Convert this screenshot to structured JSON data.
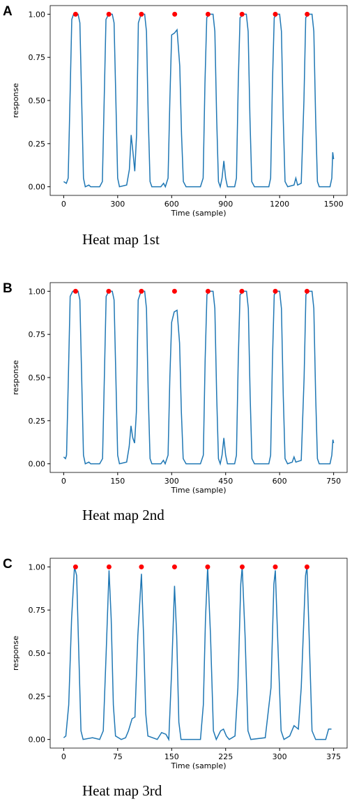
{
  "chart_data": [
    {
      "type": "line",
      "panel_label": "A",
      "caption": "Heat map 1st",
      "ylabel": "response",
      "xlabel": "Time (sample)",
      "xlim": [
        -75,
        1575
      ],
      "ylim": [
        -0.05,
        1.05
      ],
      "xticks": [
        0,
        300,
        600,
        900,
        1200,
        1500
      ],
      "yticks": [
        {
          "value": 0,
          "label": "0.00"
        },
        {
          "value": 0.25,
          "label": "0.25"
        },
        {
          "value": 0.5,
          "label": "0.50"
        },
        {
          "value": 0.75,
          "label": "0.75"
        },
        {
          "value": 1,
          "label": "1.00"
        }
      ],
      "x": [
        0,
        15,
        25,
        35,
        45,
        55,
        80,
        90,
        100,
        110,
        120,
        140,
        150,
        200,
        215,
        225,
        235,
        250,
        270,
        280,
        290,
        300,
        310,
        350,
        365,
        375,
        385,
        395,
        405,
        415,
        430,
        450,
        460,
        470,
        480,
        490,
        540,
        555,
        565,
        580,
        590,
        600,
        615,
        630,
        645,
        655,
        665,
        680,
        760,
        775,
        785,
        795,
        810,
        830,
        840,
        850,
        860,
        870,
        880,
        890,
        900,
        910,
        950,
        960,
        970,
        980,
        1000,
        1015,
        1025,
        1035,
        1045,
        1060,
        1140,
        1150,
        1160,
        1170,
        1185,
        1200,
        1210,
        1220,
        1230,
        1245,
        1280,
        1290,
        1300,
        1320,
        1335,
        1345,
        1360,
        1380,
        1390,
        1400,
        1410,
        1420,
        1480,
        1490,
        1495,
        1500
      ],
      "series": [
        {
          "color": "#1f77b4",
          "values": [
            0.03,
            0.02,
            0.05,
            0.5,
            0.97,
            1.0,
            1.0,
            0.95,
            0.5,
            0.05,
            0.0,
            0.01,
            0.0,
            0.0,
            0.03,
            0.5,
            0.97,
            1.0,
            1.0,
            0.95,
            0.5,
            0.05,
            0.0,
            0.01,
            0.1,
            0.3,
            0.2,
            0.09,
            0.3,
            0.95,
            1.0,
            1.0,
            0.9,
            0.4,
            0.03,
            0.0,
            0.0,
            0.02,
            0.0,
            0.05,
            0.5,
            0.88,
            0.89,
            0.91,
            0.7,
            0.3,
            0.03,
            0.0,
            0.0,
            0.05,
            0.6,
            0.98,
            1.0,
            1.0,
            0.9,
            0.4,
            0.03,
            0.0,
            0.05,
            0.15,
            0.05,
            0.0,
            0.0,
            0.05,
            0.6,
            0.98,
            1.0,
            1.0,
            0.9,
            0.4,
            0.03,
            0.0,
            0.0,
            0.05,
            0.6,
            0.98,
            1.0,
            1.0,
            0.9,
            0.4,
            0.03,
            0.0,
            0.01,
            0.05,
            0.01,
            0.02,
            0.5,
            0.98,
            1.0,
            1.0,
            0.9,
            0.4,
            0.03,
            0.0,
            0.0,
            0.05,
            0.2,
            0.16
          ]
        }
      ],
      "peaks": {
        "color": "#ff0000",
        "x": [
          66,
          251,
          432,
          617,
          802,
          991,
          1176,
          1353
        ],
        "values": [
          1,
          1,
          1,
          1,
          1,
          1,
          1,
          1
        ]
      }
    },
    {
      "type": "line",
      "panel_label": "B",
      "caption": "Heat map 2nd",
      "ylabel": "response",
      "xlabel": "Time (sample)",
      "xlim": [
        -37.5,
        787.5
      ],
      "ylim": [
        -0.05,
        1.05
      ],
      "xticks": [
        0,
        150,
        300,
        450,
        600,
        750
      ],
      "yticks": [
        {
          "value": 0,
          "label": "0.00"
        },
        {
          "value": 0.25,
          "label": "0.25"
        },
        {
          "value": 0.5,
          "label": "0.50"
        },
        {
          "value": 0.75,
          "label": "0.75"
        },
        {
          "value": 1,
          "label": "1.00"
        }
      ],
      "x": [
        0,
        5,
        8,
        13,
        18,
        25,
        40,
        45,
        50,
        55,
        60,
        70,
        75,
        100,
        108,
        113,
        118,
        125,
        135,
        140,
        145,
        150,
        155,
        175,
        182,
        187,
        192,
        197,
        202,
        207,
        215,
        225,
        230,
        235,
        240,
        245,
        270,
        277,
        282,
        290,
        295,
        300,
        307,
        315,
        322,
        327,
        332,
        340,
        380,
        388,
        393,
        398,
        405,
        415,
        420,
        425,
        430,
        435,
        440,
        445,
        450,
        455,
        475,
        480,
        485,
        490,
        500,
        508,
        513,
        518,
        523,
        530,
        570,
        575,
        580,
        585,
        593,
        600,
        605,
        610,
        615,
        622,
        635,
        640,
        645,
        660,
        668,
        673,
        680,
        690,
        695,
        700,
        705,
        710,
        740,
        745,
        748,
        750
      ],
      "series": [
        {
          "color": "#1f77b4",
          "values": [
            0.04,
            0.03,
            0.05,
            0.5,
            0.97,
            1.0,
            1.0,
            0.95,
            0.5,
            0.05,
            0.0,
            0.01,
            0.0,
            0.0,
            0.03,
            0.5,
            0.97,
            1.0,
            1.0,
            0.95,
            0.5,
            0.05,
            0.0,
            0.01,
            0.1,
            0.22,
            0.15,
            0.12,
            0.3,
            0.95,
            1.0,
            1.0,
            0.9,
            0.4,
            0.03,
            0.0,
            0.0,
            0.02,
            0.0,
            0.05,
            0.5,
            0.82,
            0.88,
            0.89,
            0.7,
            0.3,
            0.03,
            0.0,
            0.0,
            0.05,
            0.6,
            0.98,
            1.0,
            1.0,
            0.9,
            0.4,
            0.03,
            0.0,
            0.05,
            0.15,
            0.05,
            0.0,
            0.0,
            0.05,
            0.6,
            0.98,
            1.0,
            1.0,
            0.9,
            0.4,
            0.03,
            0.0,
            0.0,
            0.05,
            0.6,
            0.98,
            1.0,
            1.0,
            0.9,
            0.4,
            0.03,
            0.0,
            0.01,
            0.04,
            0.01,
            0.02,
            0.5,
            0.98,
            1.0,
            1.0,
            0.9,
            0.4,
            0.03,
            0.0,
            0.0,
            0.05,
            0.14,
            0.12
          ]
        }
      ],
      "peaks": {
        "color": "#ff0000",
        "x": [
          33,
          125,
          216,
          308,
          401,
          495,
          588,
          676
        ],
        "values": [
          1,
          1,
          1,
          1,
          1,
          1,
          1,
          1
        ]
      }
    },
    {
      "type": "line",
      "panel_label": "C",
      "caption": "Heat map 3rd",
      "ylabel": "response",
      "xlabel": "Time (sample)",
      "xlim": [
        -18.75,
        393.75
      ],
      "ylim": [
        -0.05,
        1.05
      ],
      "xticks": [
        0,
        75,
        150,
        225,
        300,
        375
      ],
      "yticks": [
        {
          "value": 0,
          "label": "0.00"
        },
        {
          "value": 0.25,
          "label": "0.25"
        },
        {
          "value": 0.5,
          "label": "0.50"
        },
        {
          "value": 0.75,
          "label": "0.75"
        },
        {
          "value": 1,
          "label": "1.00"
        }
      ],
      "x": [
        0,
        3,
        7,
        11,
        15,
        18,
        21,
        24,
        27,
        40,
        50,
        55,
        59,
        63,
        66,
        69,
        72,
        80,
        86,
        90,
        95,
        99,
        103,
        108,
        111,
        114,
        117,
        130,
        136,
        142,
        146,
        150,
        154,
        157,
        160,
        163,
        190,
        194,
        197,
        200,
        204,
        208,
        212,
        218,
        222,
        226,
        230,
        238,
        242,
        246,
        248,
        252,
        256,
        260,
        280,
        288,
        292,
        294,
        298,
        302,
        306,
        314,
        320,
        326,
        330,
        336,
        338,
        341,
        345,
        350,
        364,
        368,
        372
      ],
      "series": [
        {
          "color": "#1f77b4",
          "values": [
            0.01,
            0.02,
            0.2,
            0.7,
            1.0,
            0.95,
            0.5,
            0.05,
            0.0,
            0.01,
            0.0,
            0.05,
            0.5,
            0.98,
            0.7,
            0.2,
            0.02,
            0.0,
            0.01,
            0.05,
            0.12,
            0.13,
            0.6,
            0.96,
            0.6,
            0.15,
            0.02,
            0.0,
            0.04,
            0.03,
            0.0,
            0.4,
            0.89,
            0.6,
            0.1,
            0.0,
            0.0,
            0.2,
            0.7,
            1.0,
            0.6,
            0.05,
            0.0,
            0.05,
            0.06,
            0.02,
            0.0,
            0.02,
            0.3,
            0.9,
            1.0,
            0.6,
            0.05,
            0.0,
            0.01,
            0.3,
            0.9,
            0.98,
            0.5,
            0.05,
            0.0,
            0.02,
            0.08,
            0.06,
            0.3,
            0.95,
            1.0,
            0.6,
            0.05,
            0.0,
            0.0,
            0.06,
            0.06
          ]
        }
      ],
      "peaks": {
        "color": "#ff0000",
        "x": [
          16.5,
          63,
          108,
          154,
          200,
          248,
          294,
          338
        ],
        "values": [
          1,
          1,
          1,
          1,
          1,
          1,
          1,
          1
        ]
      }
    }
  ]
}
